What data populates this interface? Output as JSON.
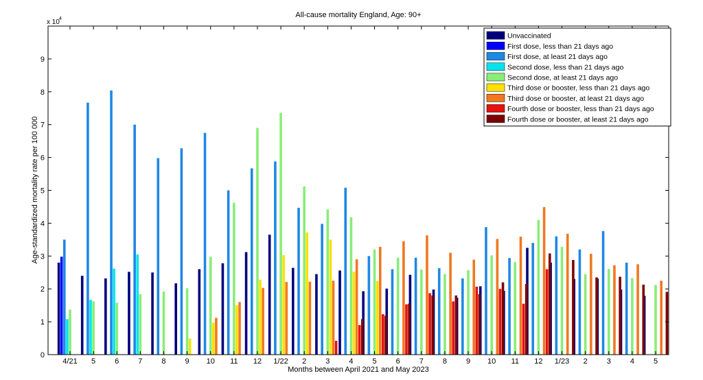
{
  "chart_data": {
    "type": "bar",
    "title": "All-cause mortality England, Age: 90+",
    "xlabel": "Months between April 2021 and May 2023",
    "ylabel": "Age-standardized mortality rate per 100 000",
    "y_exponent_label": "x 10",
    "y_exponent_power": "4",
    "ylim": [
      0,
      10
    ],
    "yticks": [
      "0",
      "1",
      "2",
      "3",
      "4",
      "5",
      "6",
      "7",
      "8",
      "9"
    ],
    "grid": false,
    "legend_position": "top-right",
    "categories": [
      "4/21",
      "5",
      "6",
      "7",
      "8",
      "9",
      "10",
      "11",
      "12",
      "1/22",
      "2",
      "3",
      "4",
      "5",
      "6",
      "7",
      "8",
      "9",
      "10",
      "11",
      "12",
      "1/23",
      "2",
      "3",
      "4",
      "5"
    ],
    "series": [
      {
        "name": "Unvaccinated",
        "color": "#00007f",
        "values": [
          2.8,
          2.4,
          2.32,
          2.52,
          2.5,
          2.17,
          2.6,
          2.78,
          3.12,
          3.65,
          2.64,
          2.45,
          2.56,
          1.93,
          2.01,
          2.43,
          1.98,
          1.73,
          2.08,
          1.94,
          3.25,
          2.8,
          2.3,
          2.31,
          1.98,
          1.79
        ]
      },
      {
        "name": "First dose, less than 21 days ago",
        "color": "#0000ff",
        "values": [
          2.98,
          null,
          null,
          null,
          null,
          null,
          null,
          null,
          null,
          null,
          null,
          null,
          null,
          null,
          null,
          null,
          null,
          null,
          null,
          null,
          null,
          null,
          null,
          null,
          null,
          null
        ]
      },
      {
        "name": "First dose, at least 21 days ago",
        "color": "#1e88e5",
        "values": [
          3.5,
          7.67,
          8.04,
          7.0,
          5.98,
          6.28,
          6.75,
          5.0,
          5.67,
          5.88,
          4.47,
          3.98,
          5.08,
          3.0,
          2.6,
          2.95,
          2.63,
          2.32,
          3.88,
          2.94,
          3.4,
          3.6,
          3.2,
          3.76,
          2.8,
          null
        ]
      },
      {
        "name": "Second dose, less than 21 days ago",
        "color": "#00e5ee",
        "values": [
          1.08,
          1.67,
          2.62,
          3.05,
          null,
          null,
          null,
          null,
          null,
          null,
          null,
          null,
          null,
          null,
          null,
          null,
          null,
          null,
          null,
          null,
          null,
          null,
          null,
          null,
          null,
          null
        ]
      },
      {
        "name": "Second dose, at least 21 days ago",
        "color": "#88ee77",
        "values": [
          1.37,
          1.62,
          1.58,
          1.84,
          1.92,
          2.02,
          2.98,
          4.62,
          6.9,
          7.36,
          5.12,
          4.42,
          4.18,
          3.2,
          2.95,
          2.59,
          2.45,
          2.57,
          3.02,
          2.82,
          4.1,
          3.28,
          2.45,
          2.61,
          2.33,
          2.12
        ]
      },
      {
        "name": "Third dose or booster, less than 21 days ago",
        "color": "#ffe000",
        "values": [
          null,
          null,
          null,
          null,
          null,
          0.49,
          0.97,
          1.5,
          2.28,
          3.03,
          3.72,
          3.5,
          2.52,
          2.24,
          null,
          null,
          null,
          null,
          null,
          null,
          null,
          null,
          null,
          null,
          null,
          null
        ]
      },
      {
        "name": "Third dose or booster, at least 21 days ago",
        "color": "#f07820",
        "values": [
          null,
          null,
          null,
          null,
          null,
          null,
          1.12,
          1.6,
          2.03,
          2.21,
          2.22,
          2.25,
          2.9,
          3.28,
          3.45,
          3.63,
          3.1,
          2.89,
          3.52,
          3.59,
          4.49,
          3.68,
          3.07,
          2.72,
          2.75,
          2.25
        ]
      },
      {
        "name": "Fourth dose or booster, less than 21 days ago",
        "color": "#e51010",
        "values": [
          null,
          null,
          null,
          null,
          null,
          null,
          null,
          null,
          null,
          null,
          null,
          0.42,
          0.9,
          1.23,
          1.53,
          1.87,
          1.62,
          2.07,
          2.0,
          1.55,
          2.6,
          null,
          null,
          null,
          null,
          null
        ]
      },
      {
        "name": "Fourth dose or booster, at least 21 days ago",
        "color": "#7f0000",
        "values": [
          null,
          null,
          null,
          null,
          null,
          null,
          null,
          null,
          null,
          null,
          null,
          null,
          1.08,
          1.18,
          1.55,
          1.8,
          1.8,
          1.84,
          2.2,
          2.15,
          3.08,
          2.88,
          2.35,
          2.37,
          2.13,
          1.91
        ]
      }
    ]
  }
}
